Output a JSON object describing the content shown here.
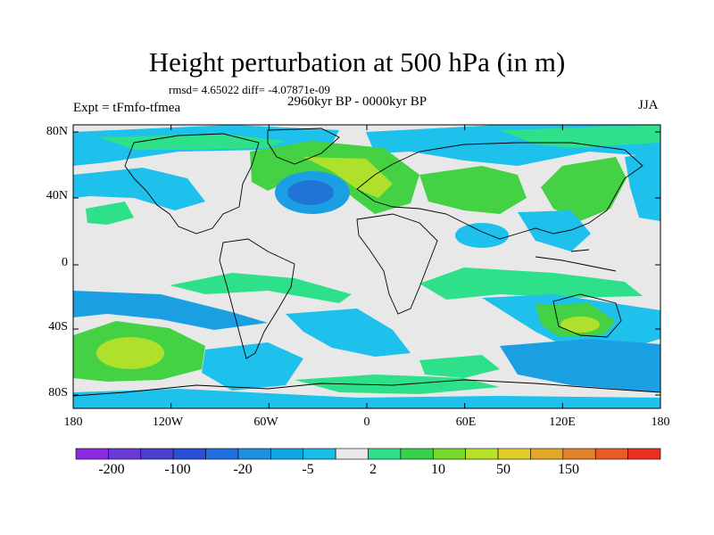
{
  "figure": {
    "title": "Height perturbation at 500 hPa (in m)",
    "stats": "rmsd= 4.65022 diff= -4.07871e-09",
    "period": "2960kyr BP - 0000kyr BP",
    "experiment": "Expt = tFmfo-tfmea",
    "season": "JJA"
  },
  "axes": {
    "lat_ticks": [
      "80N",
      "40N",
      "0",
      "40S",
      "80S"
    ],
    "lon_ticks": [
      "180",
      "120W",
      "60W",
      "0",
      "60E",
      "120E",
      "180"
    ]
  },
  "colorbar": {
    "labels": [
      "-200",
      "-100",
      "-20",
      "-5",
      "2",
      "10",
      "50",
      "150"
    ],
    "colors": [
      "#8a2be2",
      "#6a3ad8",
      "#4a3fd0",
      "#2a4fd8",
      "#1f6fe0",
      "#1f8fe0",
      "#11a6e6",
      "#18bde8",
      "#e8e8e8",
      "#2fe08a",
      "#38d24a",
      "#7ada2a",
      "#b7e22a",
      "#e2ce2a",
      "#e2a82a",
      "#e2822a",
      "#e85a26",
      "#e8301e"
    ]
  },
  "palette": {
    "light_blue": "#1ec0ec",
    "mid_blue": "#1aa0e2",
    "dark_blue": "#1f74d6",
    "neutral": "#e8e8e8",
    "light_green": "#2ee08a",
    "mid_green": "#44d244",
    "yellow_green": "#aee02c"
  }
}
